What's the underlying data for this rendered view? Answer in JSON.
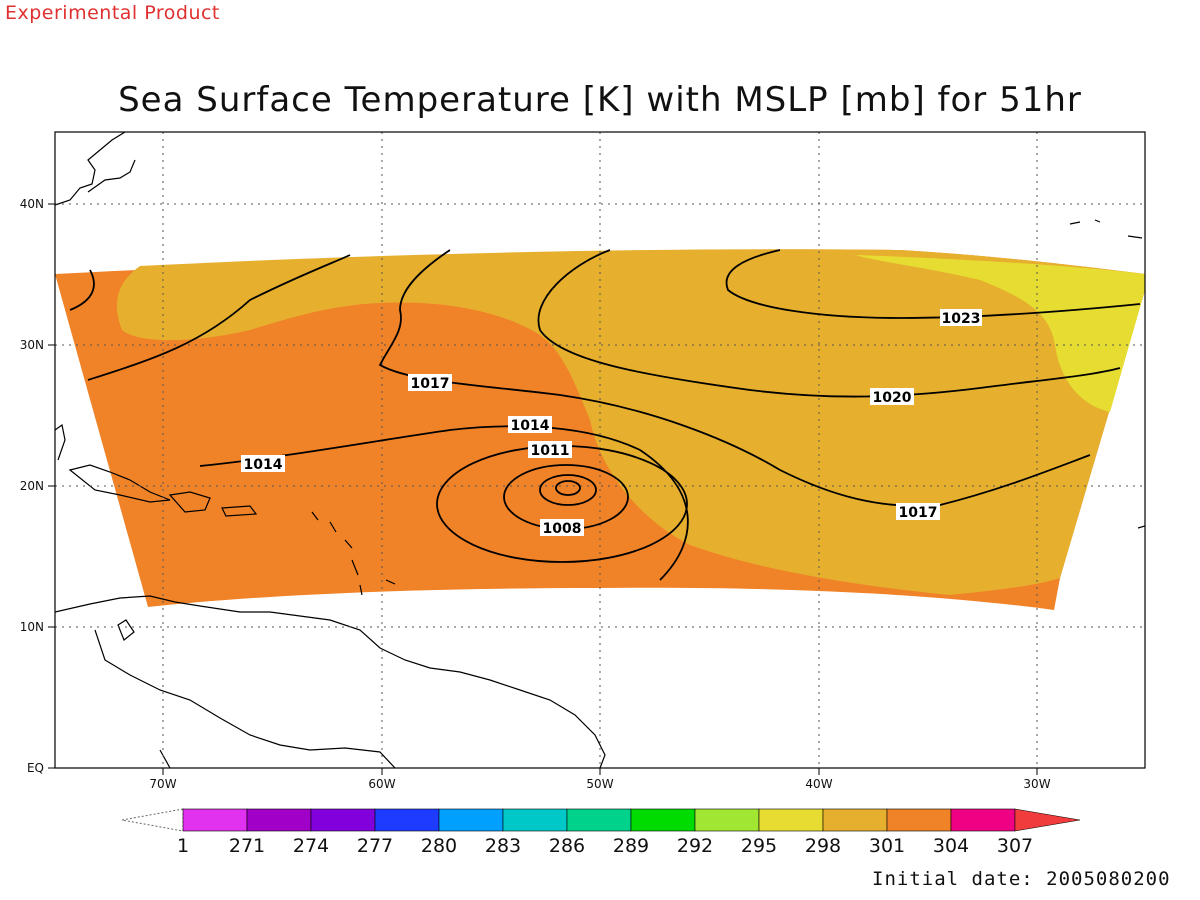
{
  "header": {
    "product_tag": "Experimental Product",
    "title": "Sea Surface Temperature [K] with MSLP [mb] for 51hr"
  },
  "footer": {
    "initial_date": "Initial date: 2005080200"
  },
  "map": {
    "x_ticks": [
      "70W",
      "60W",
      "50W",
      "40W",
      "30W"
    ],
    "y_ticks": [
      "EQ",
      "10N",
      "20N",
      "30N",
      "40N"
    ],
    "isobar_labels": [
      "1023",
      "1020",
      "1017",
      "1017",
      "1014",
      "1014",
      "1011",
      "1008"
    ],
    "colors": {
      "sst_298": "#e6dc32",
      "sst_301": "#e6af2d",
      "sst_304": "#f08228",
      "land_outline": "#000000"
    }
  },
  "colorbar": {
    "labels": [
      "1",
      "271",
      "274",
      "277",
      "280",
      "283",
      "286",
      "289",
      "292",
      "295",
      "298",
      "301",
      "304",
      "307"
    ],
    "colors": [
      "#e132f0",
      "#a000c8",
      "#8200dc",
      "#1e3cff",
      "#00a0ff",
      "#00c8c8",
      "#00d28c",
      "#00dc00",
      "#a0e632",
      "#e6dc32",
      "#e6af2d",
      "#f08228",
      "#f00082",
      "#f03c3c"
    ]
  }
}
